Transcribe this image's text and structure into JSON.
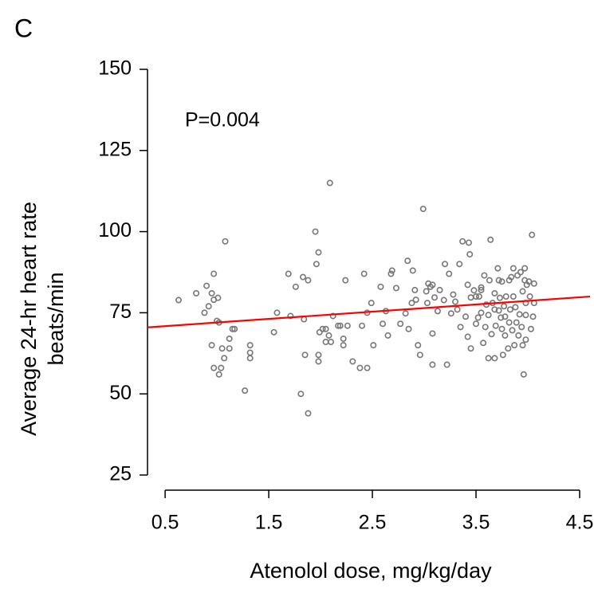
{
  "chart_data": {
    "type": "scatter",
    "panel_label": "C",
    "annotation": "P=0.004",
    "y_label": [
      "Average 24-hr heart rate",
      "beats/min"
    ],
    "x_label": "Atenolol dose, mg/kg/day",
    "xlim": [
      0.33,
      4.6
    ],
    "xticks": [
      0.5,
      1.5,
      2.5,
      3.5,
      4.5
    ],
    "ylim": [
      25,
      150
    ],
    "yticks": [
      25,
      50,
      75,
      100,
      125,
      150
    ],
    "points": {
      "color": "#777777",
      "x": [
        0.63,
        0.8,
        0.88,
        0.9,
        0.92,
        0.95,
        0.97,
        0.97,
        1.0,
        1.01,
        1.02,
        0.95,
        0.97,
        1.02,
        1.04,
        1.05,
        1.07,
        1.08,
        1.12,
        1.12,
        1.15,
        1.17,
        1.27,
        1.32,
        1.32,
        1.32,
        1.55,
        1.58,
        1.69,
        1.71,
        1.76,
        1.81,
        1.83,
        1.84,
        1.85,
        1.88,
        1.88,
        1.95,
        1.96,
        1.98,
        1.98,
        1.98,
        1.99,
        2.02,
        2.05,
        2.05,
        2.08,
        2.09,
        2.1,
        2.12,
        2.17,
        2.19,
        2.22,
        2.22,
        2.24,
        2.26,
        2.31,
        2.38,
        2.4,
        2.42,
        2.45,
        2.45,
        2.49,
        2.51,
        2.58,
        2.6,
        2.63,
        2.65,
        2.68,
        2.69,
        2.73,
        2.77,
        2.82,
        2.84,
        2.85,
        2.88,
        2.89,
        2.91,
        2.92,
        2.94,
        2.96,
        2.99,
        3.02,
        3.03,
        3.04,
        3.06,
        3.08,
        3.08,
        3.08,
        3.1,
        3.13,
        3.15,
        3.19,
        3.2,
        3.24,
        3.22,
        3.26,
        3.28,
        3.3,
        3.32,
        3.34,
        3.35,
        3.37,
        3.4,
        3.42,
        3.42,
        3.43,
        3.44,
        3.45,
        3.48,
        3.5,
        3.5,
        3.52,
        3.53,
        3.55,
        3.55,
        3.57,
        3.58,
        3.59,
        3.6,
        3.62,
        3.62,
        3.63,
        3.64,
        3.65,
        3.66,
        3.68,
        3.68,
        3.68,
        3.69,
        3.71,
        3.72,
        3.72,
        3.73,
        3.74,
        3.75,
        3.75,
        3.76,
        3.77,
        3.78,
        3.78,
        3.79,
        3.81,
        3.82,
        3.82,
        3.83,
        3.84,
        3.85,
        3.86,
        3.87,
        3.88,
        3.89,
        3.9,
        3.91,
        3.92,
        3.93,
        3.94,
        3.95,
        3.95,
        3.96,
        3.97,
        3.97,
        3.98,
        3.98,
        3.98,
        3.99,
        4.01,
        4.02,
        4.03,
        4.04,
        4.05,
        4.06,
        4.06,
        3.86,
        3.55,
        3.45
      ],
      "y": [
        78.9,
        81,
        75,
        83.3,
        77,
        81,
        87,
        79,
        72.5,
        79.6,
        72,
        65,
        58,
        56,
        58,
        64,
        61,
        97,
        67,
        64,
        70,
        70,
        51,
        65,
        62.7,
        61,
        69,
        75,
        87,
        74,
        83,
        50,
        86,
        73,
        62,
        85,
        44,
        100,
        90,
        93.6,
        62,
        60,
        69,
        70,
        66,
        70,
        68,
        115,
        66,
        74,
        71,
        71,
        67,
        65,
        85,
        71,
        60,
        58,
        71,
        87,
        58,
        75,
        78,
        65,
        83,
        71.6,
        75.5,
        68,
        87,
        88,
        82.6,
        71.6,
        74.8,
        91,
        70,
        78,
        88,
        82,
        79,
        65,
        62,
        107,
        81.6,
        78,
        84,
        83,
        68.6,
        83.6,
        59,
        79.7,
        75.5,
        82,
        78.9,
        90,
        87,
        59,
        74.8,
        80.6,
        78.4,
        76,
        90,
        70.6,
        97,
        73.8,
        83.6,
        67.6,
        96.6,
        93,
        64,
        81.9,
        80,
        71.6,
        73.5,
        80,
        82.8,
        75,
        65.7,
        86.5,
        70.6,
        77.5,
        74.3,
        61,
        85,
        97.5,
        68.4,
        78,
        81,
        76,
        61,
        71,
        88.7,
        85,
        75.7,
        79.6,
        73.5,
        70,
        84.6,
        62,
        77,
        68,
        73.8,
        80,
        64,
        72,
        85,
        76,
        86,
        69.6,
        80,
        65,
        76.7,
        72,
        86.5,
        68,
        74.5,
        87.5,
        70.6,
        81.6,
        65,
        56,
        88.7,
        85,
        78,
        74.3,
        66.7,
        83.6,
        84.6,
        80,
        70,
        99,
        73.8,
        84,
        78,
        88.7,
        82,
        79.7
      ]
    },
    "fit": {
      "color": "#ff0000",
      "x": [
        0.33,
        4.6
      ],
      "y": [
        70.5,
        80
      ]
    }
  }
}
